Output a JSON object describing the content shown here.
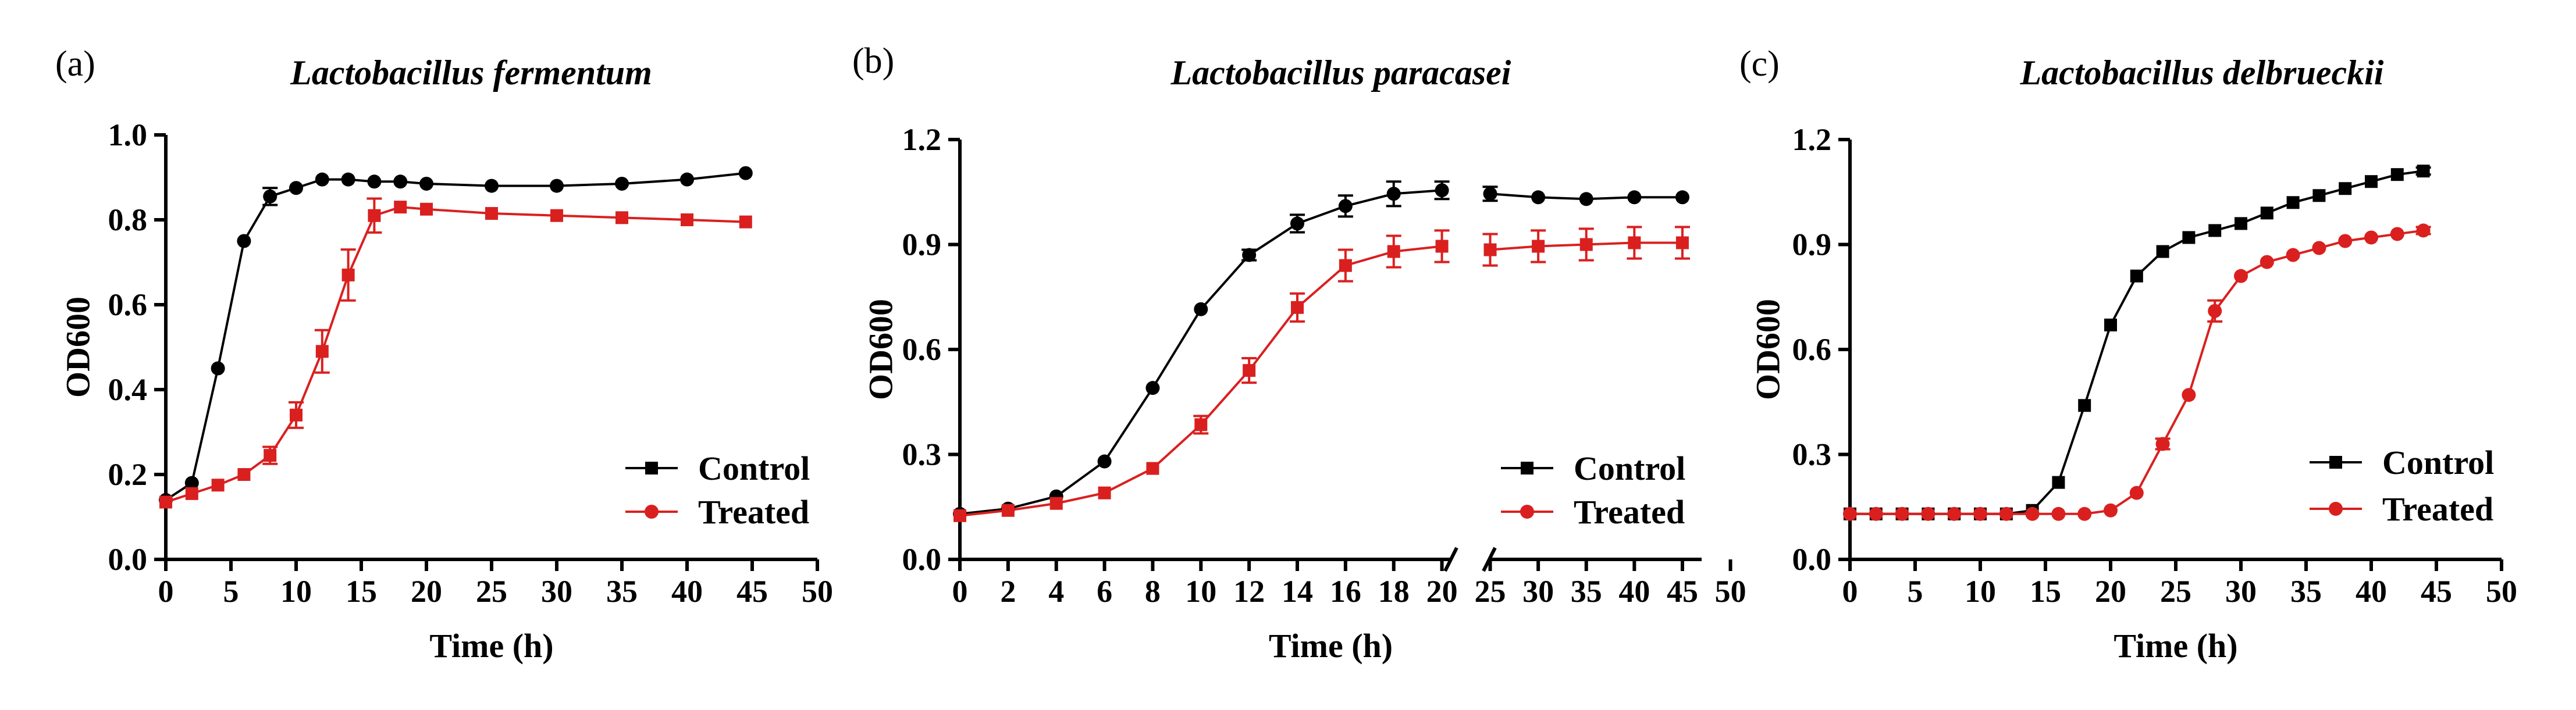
{
  "colors": {
    "control": "#000000",
    "treated": "#d9201f",
    "axis": "#000000"
  },
  "chart_data": [
    {
      "type": "line",
      "panel": "(a)",
      "title": "Lactobacillus fermentum",
      "xlabel": "Time (h)",
      "ylabel": "OD600",
      "xlim": [
        0,
        50
      ],
      "ylim": [
        0,
        1.0
      ],
      "x_ticks": [
        0,
        5,
        10,
        15,
        20,
        25,
        30,
        35,
        40,
        45,
        50
      ],
      "y_ticks": [
        0.0,
        0.2,
        0.4,
        0.6,
        0.8,
        1.0
      ],
      "y_tick_labels": [
        "0.0",
        "0.2",
        "0.4",
        "0.6",
        "0.8",
        "1.0"
      ],
      "legend_position": "bottom-right",
      "series": [
        {
          "name": "Control",
          "marker": "circle",
          "legend_marker": "square",
          "color_key": "control",
          "x": [
            0,
            2,
            4,
            6,
            8,
            10,
            12,
            14,
            16,
            18,
            20,
            25,
            30,
            35,
            40,
            44.5
          ],
          "y": [
            0.14,
            0.18,
            0.45,
            0.75,
            0.855,
            0.875,
            0.895,
            0.895,
            0.89,
            0.89,
            0.885,
            0.88,
            0.88,
            0.885,
            0.895,
            0.91
          ],
          "err": [
            0,
            0,
            0,
            0,
            0.02,
            0,
            0,
            0,
            0,
            0,
            0,
            0,
            0,
            0,
            0,
            0
          ]
        },
        {
          "name": "Treated",
          "marker": "square",
          "legend_marker": "circle",
          "color_key": "treated",
          "x": [
            0,
            2,
            4,
            6,
            8,
            10,
            12,
            14,
            16,
            18,
            20,
            25,
            30,
            35,
            40,
            44.5
          ],
          "y": [
            0.135,
            0.155,
            0.175,
            0.2,
            0.245,
            0.34,
            0.49,
            0.67,
            0.81,
            0.83,
            0.825,
            0.815,
            0.81,
            0.805,
            0.8,
            0.795
          ],
          "err": [
            0,
            0,
            0,
            0,
            0.02,
            0.03,
            0.05,
            0.06,
            0.04,
            0,
            0,
            0,
            0,
            0,
            0,
            0
          ]
        }
      ]
    },
    {
      "type": "line",
      "panel": "(b)",
      "title": "Lactobacillus paracasei",
      "xlabel": "Time (h)",
      "ylabel": "OD600",
      "ylim": [
        0,
        1.2
      ],
      "y_ticks": [
        0.0,
        0.3,
        0.6,
        0.9,
        1.2
      ],
      "y_tick_labels": [
        "0.0",
        "0.3",
        "0.6",
        "0.9",
        "1.2"
      ],
      "axis_break": {
        "segment1": [
          0,
          21
        ],
        "segment2": [
          24,
          47
        ]
      },
      "x_ticks": [
        0,
        2,
        4,
        6,
        8,
        10,
        12,
        14,
        16,
        18,
        20,
        25,
        30,
        35,
        40,
        45,
        50
      ],
      "legend_position": "bottom-right",
      "series": [
        {
          "name": "Control",
          "marker": "circle",
          "legend_marker": "square",
          "color_key": "control",
          "x": [
            0,
            2,
            4,
            6,
            8,
            10,
            12,
            14,
            16,
            18,
            20,
            25,
            30,
            35,
            40,
            45
          ],
          "y": [
            0.13,
            0.145,
            0.18,
            0.28,
            0.49,
            0.715,
            0.87,
            0.96,
            1.01,
            1.045,
            1.055,
            1.045,
            1.035,
            1.03,
            1.035,
            1.035
          ],
          "err": [
            0,
            0,
            0,
            0,
            0,
            0,
            0.015,
            0.025,
            0.03,
            0.035,
            0.025,
            0.02,
            0,
            0,
            0,
            0
          ]
        },
        {
          "name": "Treated",
          "marker": "square",
          "legend_marker": "circle",
          "color_key": "treated",
          "x": [
            0,
            2,
            4,
            6,
            8,
            10,
            12,
            14,
            16,
            18,
            20,
            25,
            30,
            35,
            40,
            45
          ],
          "y": [
            0.125,
            0.14,
            0.16,
            0.19,
            0.26,
            0.385,
            0.54,
            0.72,
            0.84,
            0.88,
            0.895,
            0.885,
            0.895,
            0.9,
            0.905,
            0.905
          ],
          "err": [
            0,
            0,
            0,
            0,
            0,
            0.025,
            0.035,
            0.04,
            0.045,
            0.045,
            0.045,
            0.045,
            0.045,
            0.045,
            0.045,
            0.045
          ]
        }
      ]
    },
    {
      "type": "line",
      "panel": "(c)",
      "title": "Lactobacillus delbrueckii",
      "xlabel": "Time (h)",
      "ylabel": "OD600",
      "xlim": [
        0,
        50
      ],
      "ylim": [
        0,
        1.2
      ],
      "x_ticks": [
        0,
        5,
        10,
        15,
        20,
        25,
        30,
        35,
        40,
        45,
        50
      ],
      "y_ticks": [
        0.0,
        0.3,
        0.6,
        0.9,
        1.2
      ],
      "y_tick_labels": [
        "0.0",
        "0.3",
        "0.6",
        "0.9",
        "1.2"
      ],
      "legend_position": "bottom-right",
      "series": [
        {
          "name": "Control",
          "marker": "square",
          "legend_marker": "square",
          "color_key": "control",
          "x": [
            0,
            2,
            4,
            6,
            8,
            10,
            12,
            14,
            16,
            18,
            20,
            22,
            24,
            26,
            28,
            30,
            32,
            34,
            36,
            38,
            40,
            42,
            44
          ],
          "y": [
            0.13,
            0.13,
            0.13,
            0.13,
            0.13,
            0.13,
            0.13,
            0.14,
            0.22,
            0.44,
            0.67,
            0.81,
            0.88,
            0.92,
            0.94,
            0.96,
            0.99,
            1.02,
            1.04,
            1.06,
            1.08,
            1.1,
            1.11
          ],
          "err": [
            0,
            0,
            0,
            0,
            0,
            0,
            0,
            0,
            0,
            0,
            0,
            0,
            0,
            0,
            0,
            0,
            0,
            0,
            0,
            0,
            0,
            0,
            0.01
          ]
        },
        {
          "name": "Treated",
          "marker": "circle",
          "legend_marker": "circle",
          "color_key": "treated",
          "x": [
            0,
            2,
            4,
            6,
            8,
            10,
            12,
            14,
            16,
            18,
            20,
            22,
            24,
            26,
            28,
            30,
            32,
            34,
            36,
            38,
            40,
            42,
            44
          ],
          "y": [
            0.13,
            0.13,
            0.13,
            0.13,
            0.13,
            0.13,
            0.13,
            0.13,
            0.13,
            0.13,
            0.14,
            0.19,
            0.33,
            0.47,
            0.71,
            0.81,
            0.85,
            0.87,
            0.89,
            0.91,
            0.92,
            0.93,
            0.94
          ],
          "err": [
            0,
            0,
            0,
            0,
            0,
            0,
            0,
            0,
            0,
            0,
            0,
            0,
            0.015,
            0,
            0.03,
            0,
            0,
            0,
            0,
            0,
            0,
            0,
            0.01
          ]
        }
      ]
    }
  ]
}
